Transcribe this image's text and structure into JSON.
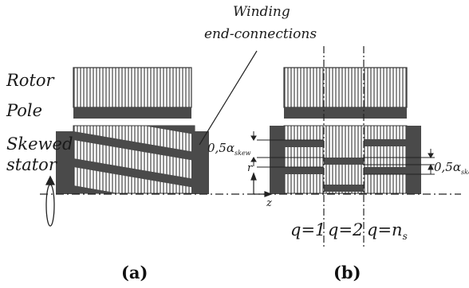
{
  "labels": {
    "rotor": "Rotor",
    "pole": "Pole",
    "skewed": "Skewed",
    "stator": "stator",
    "winding": "Winding",
    "end_connections": "end-connections",
    "r_axis": "r",
    "z_axis": "z",
    "skew_prefix": "0,5α",
    "skew_sub": "skew"
  },
  "sections": [
    {
      "label": "q=1"
    },
    {
      "label": "q=2"
    },
    {
      "label": "q=n",
      "subscript": "s"
    }
  ],
  "captions": {
    "a": "(a)",
    "b": "(b)"
  },
  "colors": {
    "ink": "#1a1a1a",
    "dark_fill": "#4a4a4a",
    "hatch": "#555555"
  }
}
